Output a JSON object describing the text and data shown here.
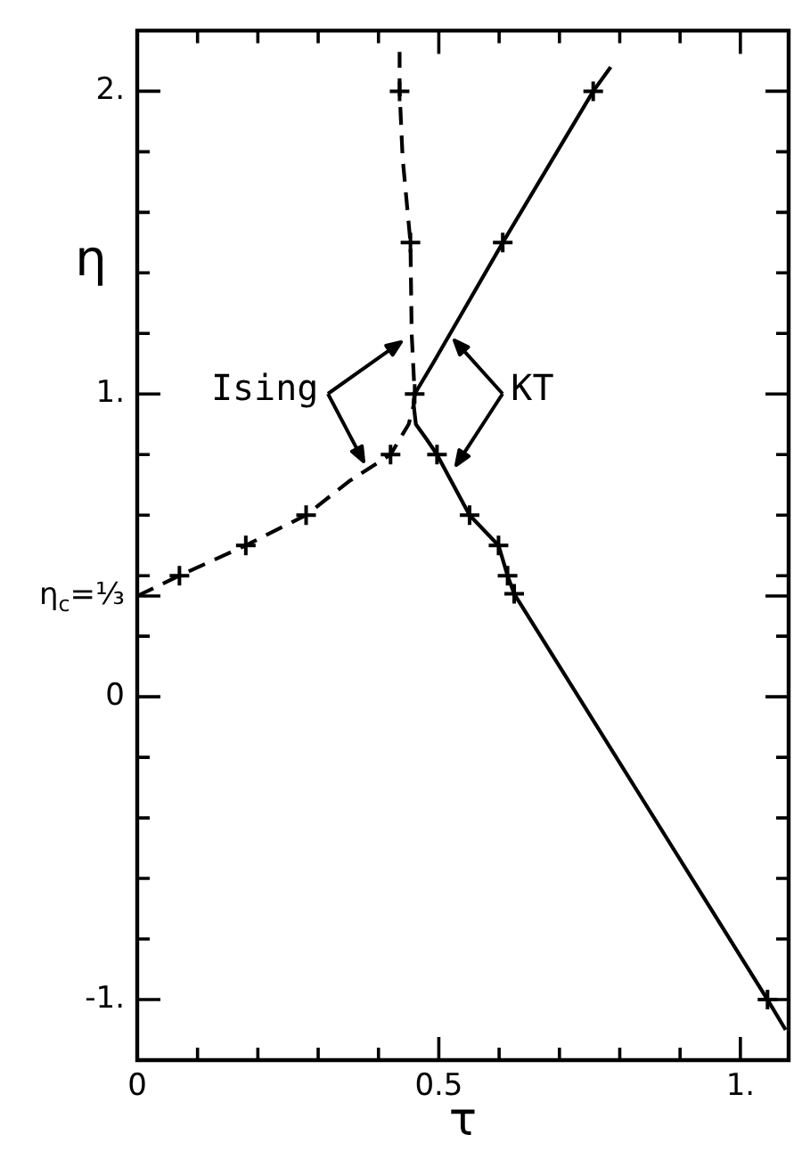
{
  "chart_data": {
    "type": "line",
    "xlabel": "τ",
    "ylabel": "η",
    "xlim": [
      0,
      1.08
    ],
    "ylim": [
      -1.2,
      2.2
    ],
    "xticks": [
      0,
      {
        "value": 0.1,
        "label": null
      },
      {
        "value": 0.2,
        "label": null
      },
      {
        "value": 0.3,
        "label": null
      },
      {
        "value": 0.4,
        "label": null
      },
      0.5,
      {
        "value": 0.6,
        "label": null
      },
      {
        "value": 0.7,
        "label": null
      },
      {
        "value": 0.8,
        "label": null
      },
      {
        "value": 0.9,
        "label": null
      },
      {
        "value": 1,
        "label": "1."
      }
    ],
    "yticks": [
      {
        "value": -1,
        "label": "-1."
      },
      {
        "value": -0.8,
        "label": null
      },
      {
        "value": -0.6,
        "label": null
      },
      {
        "value": -0.4,
        "label": null
      },
      {
        "value": -0.2,
        "label": null
      },
      0,
      {
        "value": 0.2,
        "label": null
      },
      {
        "value": 0.333,
        "label": "η$_{c}$=⅓"
      },
      {
        "value": 0.4,
        "label": null
      },
      {
        "value": 0.6,
        "label": null
      },
      {
        "value": 0.8,
        "label": null
      },
      {
        "value": 1,
        "label": "1."
      },
      {
        "value": 1.2,
        "label": null
      },
      {
        "value": 1.4,
        "label": null
      },
      {
        "value": 1.6,
        "label": null
      },
      {
        "value": 1.8,
        "label": null
      },
      {
        "value": 2,
        "label": "2."
      }
    ],
    "grid": false,
    "legend": false,
    "annotations": [
      "Ising",
      "KT"
    ],
    "series": [
      {
        "type": "line",
        "color": "#000000",
        "line_style": "dashed",
        "marker": "none",
        "x": [
          0,
          0.07,
          0.18,
          0.28,
          0.35,
          0.42,
          0.45,
          0.458,
          0.46,
          0.455,
          0.453,
          0.44,
          0.435,
          0.435
        ],
        "values": [
          0.333,
          0.4,
          0.5,
          0.6,
          0.71,
          0.8,
          0.9,
          0.96,
          1,
          1.2,
          1.5,
          1.78,
          2,
          2.13
        ]
      },
      {
        "type": "line",
        "color": "#000000",
        "line_style": "solid",
        "marker": "none",
        "x": [
          0.785,
          0.756,
          0.606,
          0.49,
          0.46,
          0.458,
          0.462,
          0.48,
          0.497,
          0.551,
          0.599,
          0.614,
          0.625,
          1.045,
          1.075
        ],
        "values": [
          2.08,
          2,
          1.5,
          1.1,
          1,
          0.97,
          0.9,
          0.85,
          0.8,
          0.6,
          0.5,
          0.4,
          0.34,
          -1,
          -1.1
        ]
      },
      {
        "type": "scatter",
        "color": "#000000",
        "marker": "cross",
        "x": [
          0.07,
          0.18,
          0.28,
          0.42,
          0.46,
          0.453,
          0.435,
          0.756,
          0.606,
          0.497,
          0.551,
          0.599,
          0.614,
          0.625,
          1.045
        ],
        "values": [
          0.4,
          0.5,
          0.6,
          0.8,
          1,
          1.5,
          2,
          2,
          1.5,
          0.8,
          0.6,
          0.5,
          0.4,
          0.34,
          -1
        ]
      }
    ]
  }
}
